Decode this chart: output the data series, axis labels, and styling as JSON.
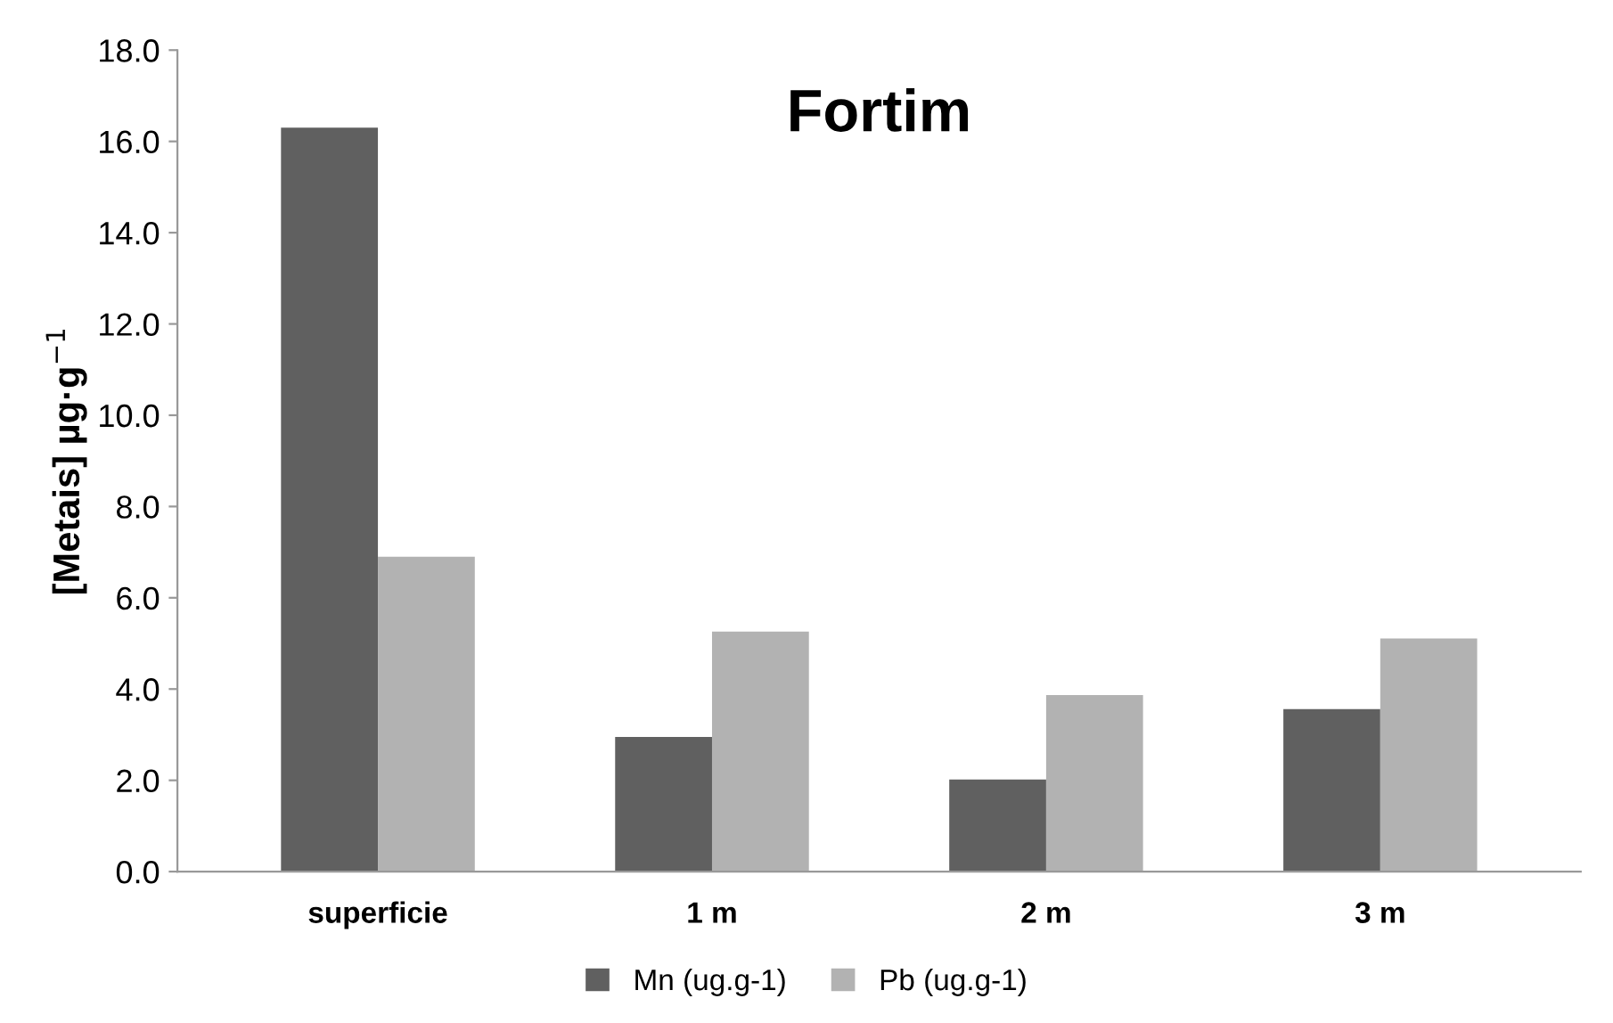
{
  "chart_data": {
    "type": "bar",
    "title": "Fortim",
    "ylabel": "[Metais] µg·g$^{−1}$",
    "categories": [
      "superficie",
      "1 m",
      "2 m",
      "3 m"
    ],
    "series": [
      {
        "name": "Mn (ug.g-1)",
        "color": "#606060",
        "values": [
          16.3,
          2.95,
          2.02,
          3.56
        ]
      },
      {
        "name": "Pb (ug.g-1)",
        "color": "#b2b2b2",
        "values": [
          6.9,
          5.26,
          3.87,
          5.11
        ]
      }
    ],
    "ylim": [
      0,
      18
    ],
    "yticks": [
      {
        "value": 0,
        "label": "0.0"
      },
      {
        "value": 2,
        "label": "2.0"
      },
      {
        "value": 4,
        "label": "4.0"
      },
      {
        "value": 6,
        "label": "6.0"
      },
      {
        "value": 8,
        "label": "8.0"
      },
      {
        "value": 10,
        "label": "10.0"
      },
      {
        "value": 12,
        "label": "12.0"
      },
      {
        "value": 14,
        "label": "14.0"
      },
      {
        "value": 16,
        "label": "16.0"
      },
      {
        "value": 18,
        "label": "18.0"
      }
    ],
    "grid": false,
    "legend": "bottom"
  }
}
